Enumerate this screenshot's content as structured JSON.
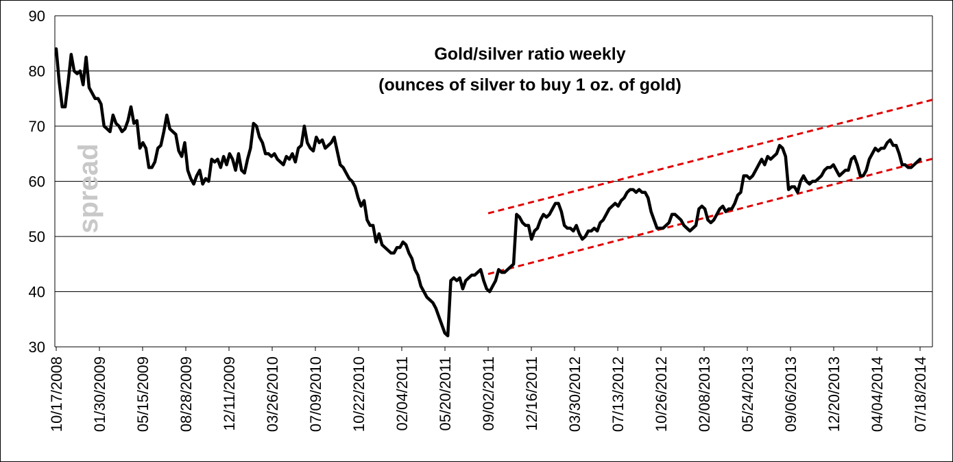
{
  "chart_data": {
    "type": "line",
    "title": "Gold/silver ratio weekly",
    "subtitle": "(ounces of silver to buy 1 oz. of gold)",
    "watermark": "spread",
    "ylim": [
      30,
      90
    ],
    "yticks": [
      30,
      40,
      50,
      60,
      70,
      80,
      90
    ],
    "grid": true,
    "xlabels": [
      "10/17/2008",
      "01/30/2009",
      "05/15/2009",
      "08/28/2009",
      "12/11/2009",
      "03/26/2010",
      "07/09/2010",
      "10/22/2010",
      "02/04/2011",
      "05/20/2011",
      "09/02/2011",
      "12/16/2011",
      "03/30/2012",
      "07/13/2012",
      "10/26/2012",
      "02/08/2013",
      "05/24/2013",
      "09/06/2013",
      "12/20/2013",
      "04/04/2014",
      "07/18/2014"
    ],
    "series": [
      {
        "values": [
          84,
          78,
          73.5,
          73.5,
          78,
          83,
          80,
          79.5,
          80,
          77.5,
          82.5,
          77,
          76,
          75,
          75,
          74,
          70,
          69.5,
          69,
          72,
          70.5,
          70,
          69,
          69.5,
          71,
          73.5,
          70.5,
          71,
          66,
          67,
          66,
          62.5,
          62.5,
          63.5,
          66,
          66.5,
          69,
          72,
          69.5,
          69,
          68.5,
          65.5,
          64.5,
          67,
          62,
          60.5,
          59.5,
          61,
          62,
          59.5,
          60.5,
          60,
          64,
          63.5,
          64,
          62.5,
          64.5,
          63,
          65,
          64,
          62,
          65,
          62,
          61.5,
          64,
          66,
          70.5,
          70,
          68,
          67,
          65,
          65,
          64.5,
          65,
          64,
          63.5,
          63,
          64.5,
          64,
          65,
          63.5,
          66,
          66.5,
          70,
          67,
          66,
          65.5,
          68,
          67,
          67.5,
          66,
          66.5,
          67,
          68,
          65.5,
          63,
          62.5,
          61.5,
          60.5,
          60,
          59,
          57,
          55.5,
          56.5,
          53,
          52,
          52,
          49,
          50.5,
          48.5,
          48,
          47.5,
          47,
          47,
          48,
          48,
          49,
          48.5,
          47,
          46,
          44,
          43,
          41,
          40,
          39,
          38.5,
          38,
          37,
          35.5,
          34,
          32.5,
          32,
          42,
          42.5,
          42,
          42.5,
          40.5,
          42,
          42.5,
          43,
          43,
          43.5,
          44,
          42,
          40.5,
          40,
          41,
          42,
          44,
          43.5,
          43.5,
          44,
          44.5,
          45,
          54,
          53.5,
          52.5,
          52,
          52,
          49.5,
          51,
          51.5,
          53,
          54,
          53.5,
          54,
          55,
          56,
          56,
          54.5,
          52,
          51.5,
          51.5,
          51,
          52,
          50.5,
          49.5,
          50,
          51,
          51,
          51.5,
          51,
          52.5,
          53,
          54,
          55,
          55.5,
          56,
          55.5,
          56.5,
          57,
          58,
          58.5,
          58.5,
          58,
          58.5,
          58,
          58,
          57,
          54.5,
          53,
          51.5,
          51.5,
          51.5,
          52,
          52.5,
          54,
          54,
          53.5,
          53,
          52,
          51.5,
          51,
          51.5,
          52,
          55,
          55.5,
          55,
          53,
          52.5,
          53,
          54,
          55,
          55.5,
          54.5,
          55,
          55,
          56,
          57.5,
          58,
          61,
          61,
          60.5,
          61,
          62,
          63,
          64,
          63,
          64.5,
          64,
          64.5,
          65,
          66.5,
          66,
          64.5,
          58.5,
          59,
          59,
          58,
          60,
          61,
          60,
          59.5,
          60,
          60,
          60.5,
          61,
          62,
          62.5,
          62.5,
          63,
          62,
          61,
          61.5,
          62,
          62,
          64,
          64.5,
          63,
          61,
          61,
          62,
          64,
          65,
          66,
          65.5,
          66,
          66,
          67,
          67.5,
          66.5,
          66.5,
          65,
          63,
          63,
          62.5,
          62.5,
          63,
          63.5,
          64
        ]
      }
    ],
    "trendlines": [
      {
        "style": "dashed",
        "color": "#e00000",
        "from": {
          "x": "09/02/2011",
          "y": 54.2
        },
        "to": {
          "x": "07/18/2014",
          "y": 74.2
        }
      },
      {
        "style": "dashed",
        "color": "#e00000",
        "from": {
          "x": "09/02/2011",
          "y": 43.2
        },
        "to": {
          "x": "07/18/2014",
          "y": 63.5
        }
      }
    ]
  },
  "colors": {
    "line": "#000000",
    "grid": "#000000",
    "trend": "#e00000",
    "watermark": "#c8c8c8"
  }
}
